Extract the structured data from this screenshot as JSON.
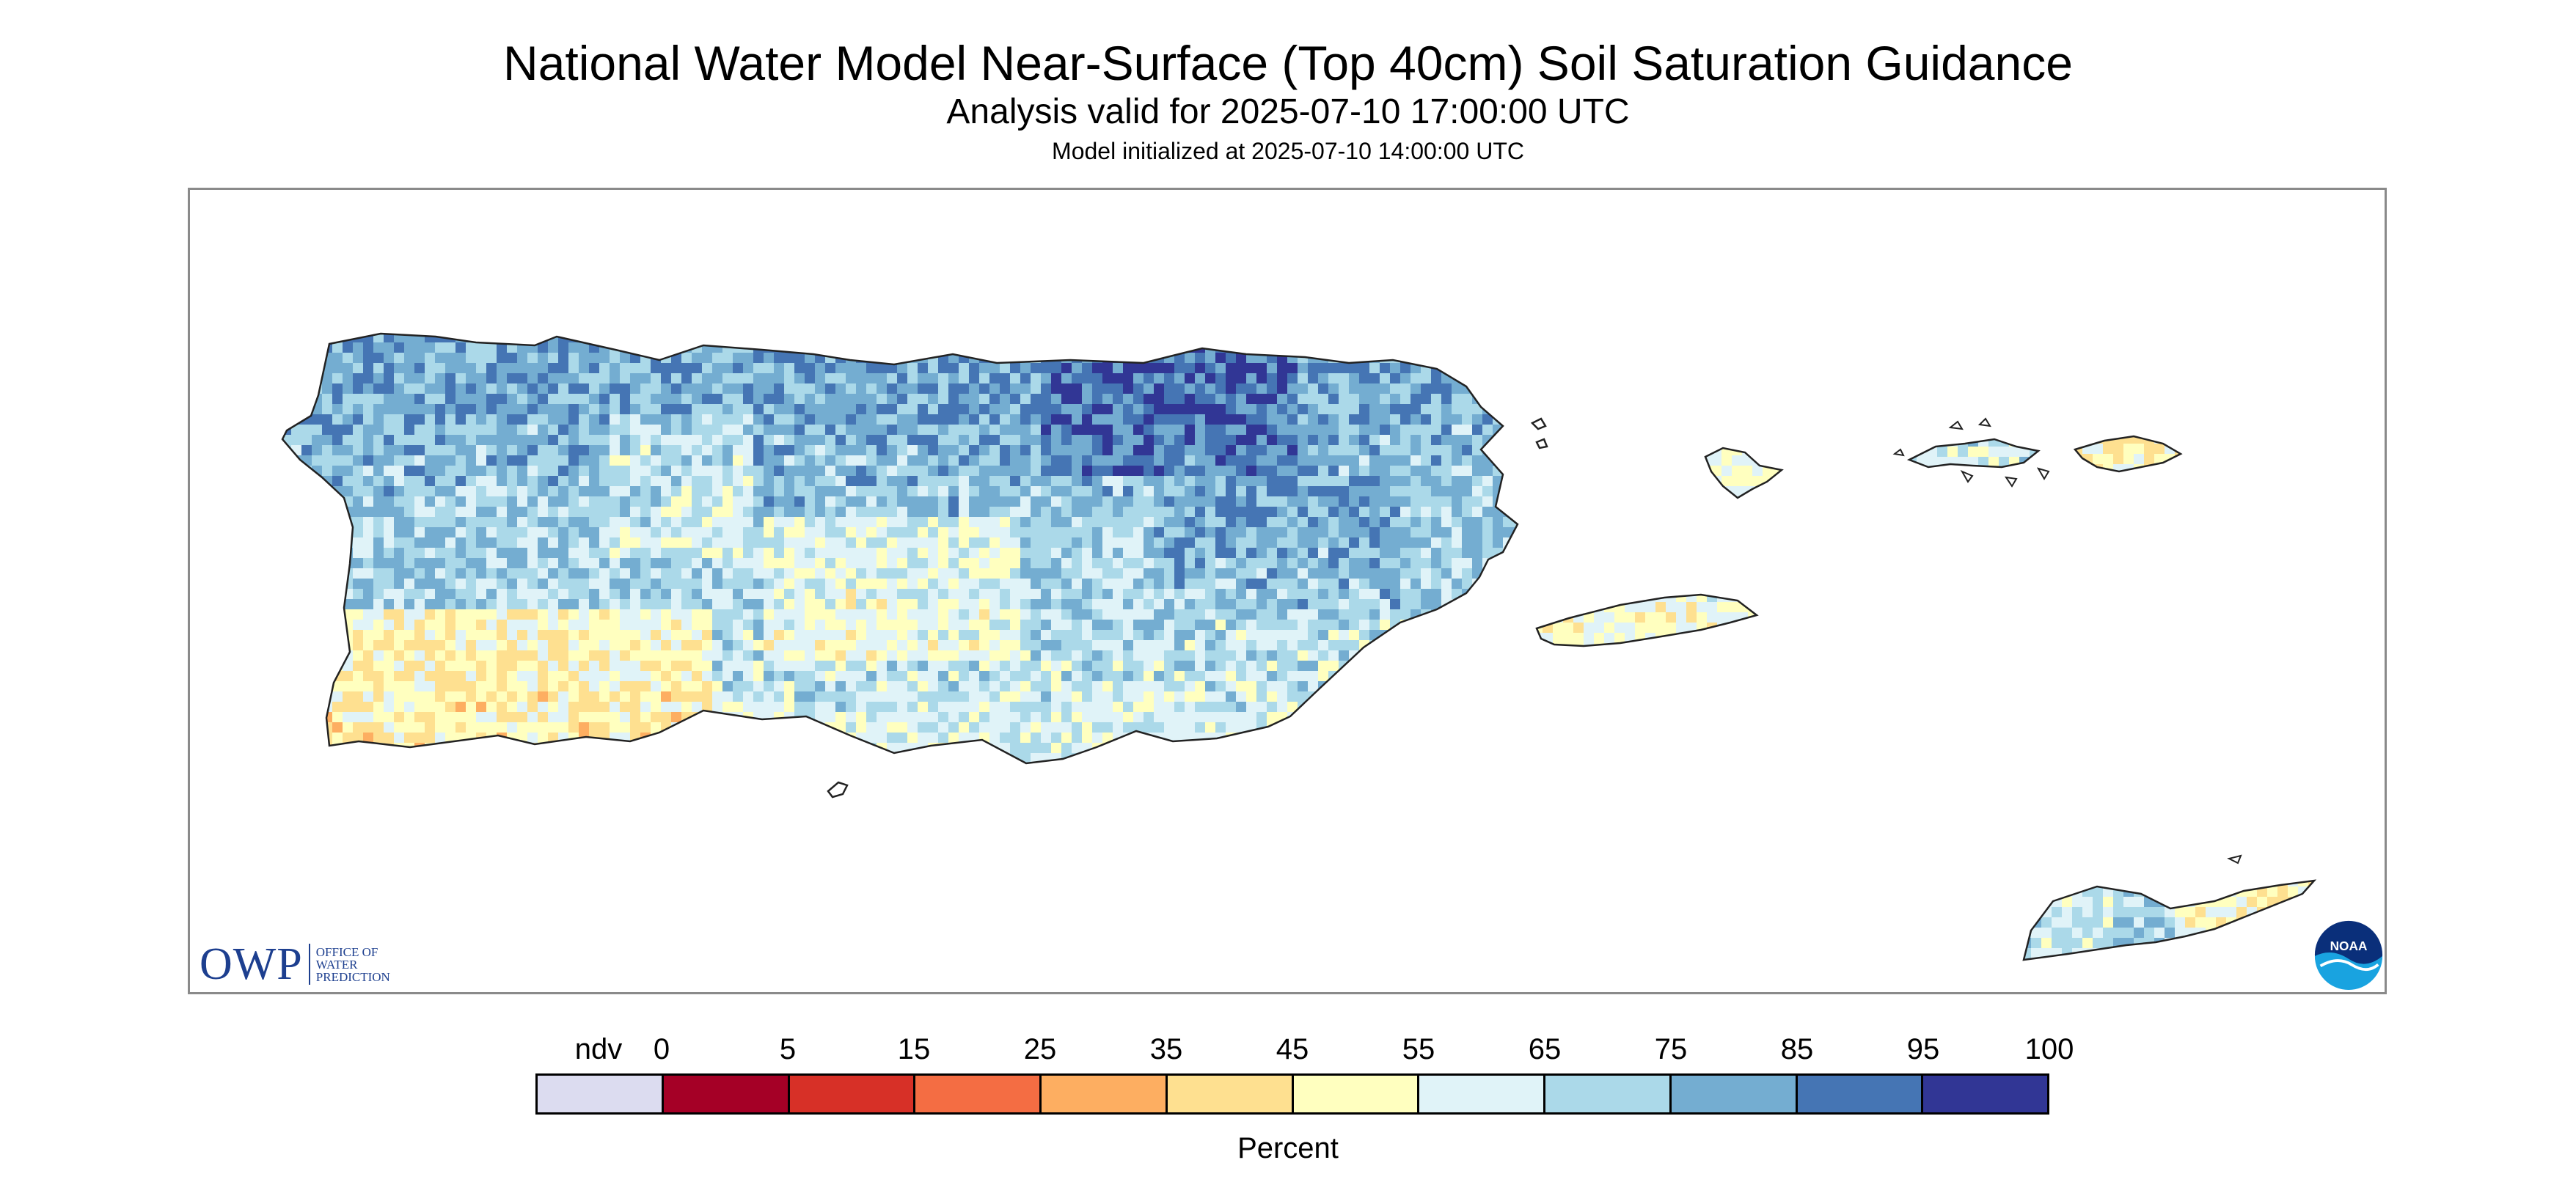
{
  "title": "National Water Model Near-Surface (Top 40cm) Soil Saturation Guidance",
  "subtitle": "Analysis valid for 2025-07-10 17:00:00 UTC",
  "init_text": "Model initialized at 2025-07-10 14:00:00 UTC",
  "logo": {
    "owp_abbrev": "OWP",
    "owp_line1": "Office of",
    "owp_line2": "Water",
    "owp_line3": "Prediction",
    "noaa": "NOAA"
  },
  "colorbar": {
    "label": "Percent",
    "ticks": [
      "ndv",
      "0",
      "5",
      "15",
      "25",
      "35",
      "45",
      "55",
      "65",
      "75",
      "85",
      "95",
      "100"
    ],
    "colors": [
      "#dcdcf0",
      "#a50026",
      "#d73027",
      "#f46d43",
      "#fdae61",
      "#fee090",
      "#ffffbf",
      "#e0f3f8",
      "#abd9e9",
      "#74add1",
      "#4575b4",
      "#313695"
    ]
  }
}
